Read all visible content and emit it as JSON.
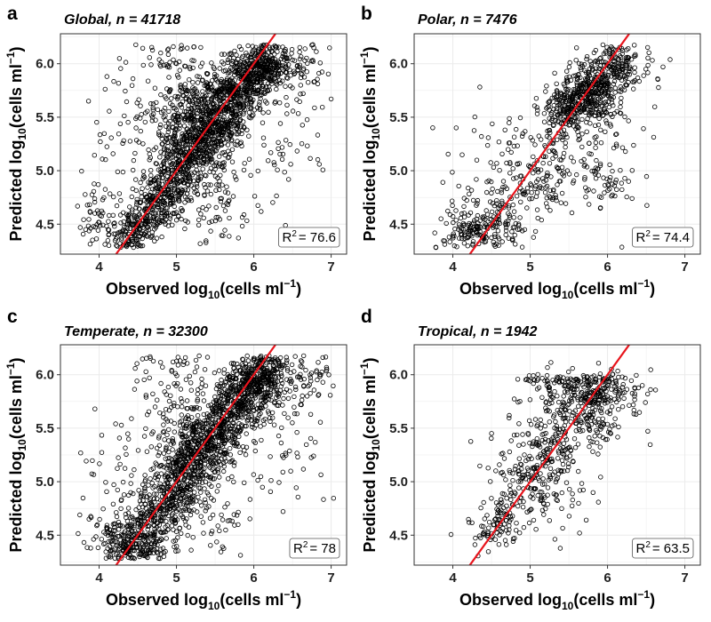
{
  "chart_data": [
    {
      "type": "scatter",
      "letter": "a",
      "title": "Global, n = 41718",
      "xlabel": "Observed log10(cells ml−1)",
      "ylabel": "Predicted log10(cells ml−1)",
      "xlim": [
        3.5,
        7.2
      ],
      "ylim": [
        4.22,
        6.28
      ],
      "xticks": [
        "4",
        "5",
        "6",
        "7"
      ],
      "yticks": [
        "4.5",
        "5.0",
        "5.5",
        "6.0"
      ],
      "grid": true,
      "fit_line": {
        "x": [
          4.0,
          6.5
        ],
        "y": [
          4.0,
          6.5
        ],
        "color": "#e8141c"
      },
      "r2_label": "R2",
      "r2_value": "= 76.6",
      "r2_placement": "bottom-right",
      "points": {
        "core": [
          [
            4.4,
            4.35,
            0.15,
            0.12,
            120
          ],
          [
            4.6,
            4.55,
            0.15,
            0.12,
            120
          ],
          [
            4.8,
            4.75,
            0.15,
            0.14,
            140
          ],
          [
            5.0,
            4.95,
            0.16,
            0.15,
            160
          ],
          [
            5.2,
            5.15,
            0.16,
            0.16,
            180
          ],
          [
            5.4,
            5.35,
            0.17,
            0.17,
            200
          ],
          [
            5.6,
            5.55,
            0.17,
            0.17,
            220
          ],
          [
            5.8,
            5.75,
            0.17,
            0.16,
            220
          ],
          [
            6.0,
            5.92,
            0.16,
            0.12,
            220
          ],
          [
            6.2,
            6.0,
            0.15,
            0.1,
            160
          ],
          [
            5.1,
            5.4,
            0.2,
            0.2,
            140
          ],
          [
            5.3,
            5.65,
            0.2,
            0.18,
            120
          ]
        ],
        "sparse": [
          [
            4.0,
            4.5,
            0.25,
            0.22,
            80
          ],
          [
            4.5,
            5.3,
            0.35,
            0.3,
            90
          ],
          [
            5.5,
            4.7,
            0.35,
            0.25,
            90
          ],
          [
            6.3,
            5.4,
            0.35,
            0.3,
            80
          ],
          [
            6.6,
            5.95,
            0.25,
            0.12,
            60
          ],
          [
            5.0,
            6.0,
            0.3,
            0.15,
            60
          ]
        ]
      }
    },
    {
      "type": "scatter",
      "letter": "b",
      "title": "Polar, n = 7476",
      "xlabel": "Observed log10(cells ml−1)",
      "ylabel": "Predicted log10(cells ml−1)",
      "xlim": [
        3.5,
        7.2
      ],
      "ylim": [
        4.22,
        6.28
      ],
      "xticks": [
        "4",
        "5",
        "6",
        "7"
      ],
      "yticks": [
        "4.5",
        "5.0",
        "5.5",
        "6.0"
      ],
      "grid": true,
      "fit_line": {
        "x": [
          4.0,
          6.5
        ],
        "y": [
          4.0,
          6.5
        ],
        "color": "#e8141c"
      },
      "r2_label": "R2",
      "r2_value": "= 74.4",
      "r2_placement": "bottom-right",
      "points": {
        "core": [
          [
            5.8,
            5.75,
            0.18,
            0.13,
            230
          ],
          [
            5.6,
            5.6,
            0.18,
            0.12,
            160
          ],
          [
            6.05,
            5.95,
            0.15,
            0.12,
            140
          ],
          [
            5.4,
            5.5,
            0.15,
            0.12,
            80
          ],
          [
            4.3,
            4.4,
            0.2,
            0.12,
            100
          ],
          [
            4.7,
            4.6,
            0.2,
            0.18,
            80
          ],
          [
            5.2,
            4.95,
            0.2,
            0.18,
            70
          ]
        ],
        "sparse": [
          [
            4.6,
            5.0,
            0.35,
            0.3,
            70
          ],
          [
            5.5,
            5.0,
            0.35,
            0.3,
            60
          ],
          [
            6.1,
            5.3,
            0.3,
            0.3,
            50
          ],
          [
            4.2,
            4.5,
            0.25,
            0.15,
            60
          ],
          [
            5.9,
            4.85,
            0.2,
            0.1,
            30
          ],
          [
            6.3,
            6.0,
            0.25,
            0.12,
            40
          ]
        ]
      }
    },
    {
      "type": "scatter",
      "letter": "c",
      "title": "Temperate, n = 32300",
      "xlabel": "Observed log10(cells ml−1)",
      "ylabel": "Predicted log10(cells ml−1)",
      "xlim": [
        3.5,
        7.2
      ],
      "ylim": [
        4.22,
        6.28
      ],
      "xticks": [
        "4",
        "5",
        "6",
        "7"
      ],
      "yticks": [
        "4.5",
        "5.0",
        "5.5",
        "6.0"
      ],
      "grid": true,
      "fit_line": {
        "x": [
          4.0,
          6.5
        ],
        "y": [
          4.0,
          6.5
        ],
        "color": "#e8141c"
      },
      "r2_label": "R2",
      "r2_value": "= 78",
      "r2_placement": "bottom-right",
      "points": {
        "core": [
          [
            4.4,
            4.4,
            0.15,
            0.12,
            110
          ],
          [
            4.6,
            4.55,
            0.16,
            0.13,
            120
          ],
          [
            4.8,
            4.75,
            0.16,
            0.14,
            130
          ],
          [
            5.0,
            4.95,
            0.16,
            0.15,
            150
          ],
          [
            5.2,
            5.15,
            0.17,
            0.16,
            170
          ],
          [
            5.4,
            5.35,
            0.17,
            0.17,
            190
          ],
          [
            5.6,
            5.55,
            0.17,
            0.17,
            200
          ],
          [
            5.8,
            5.75,
            0.17,
            0.15,
            200
          ],
          [
            6.0,
            5.92,
            0.16,
            0.12,
            200
          ],
          [
            6.2,
            6.0,
            0.15,
            0.1,
            150
          ],
          [
            5.1,
            5.4,
            0.2,
            0.2,
            120
          ],
          [
            4.5,
            4.35,
            0.25,
            0.1,
            100
          ]
        ],
        "sparse": [
          [
            4.1,
            4.6,
            0.25,
            0.22,
            70
          ],
          [
            4.6,
            5.3,
            0.35,
            0.3,
            80
          ],
          [
            5.5,
            4.7,
            0.35,
            0.25,
            70
          ],
          [
            6.3,
            5.4,
            0.35,
            0.3,
            70
          ],
          [
            6.6,
            5.95,
            0.25,
            0.12,
            60
          ],
          [
            5.0,
            6.0,
            0.3,
            0.15,
            50
          ]
        ]
      }
    },
    {
      "type": "scatter",
      "letter": "d",
      "title": "Tropical, n = 1942",
      "xlabel": "Observed log10(cells ml−1)",
      "ylabel": "Predicted log10(cells ml−1)",
      "xlim": [
        3.5,
        7.2
      ],
      "ylim": [
        4.22,
        6.28
      ],
      "xticks": [
        "4",
        "5",
        "6",
        "7"
      ],
      "yticks": [
        "4.5",
        "5.0",
        "5.5",
        "6.0"
      ],
      "grid": true,
      "fit_line": {
        "x": [
          4.0,
          6.5
        ],
        "y": [
          4.0,
          6.5
        ],
        "color": "#e8141c"
      },
      "r2_label": "R2",
      "r2_value": "= 63.5",
      "r2_placement": "bottom-right",
      "points": {
        "core": [
          [
            4.7,
            4.7,
            0.15,
            0.12,
            70
          ],
          [
            5.0,
            5.0,
            0.17,
            0.15,
            90
          ],
          [
            5.3,
            5.3,
            0.2,
            0.18,
            100
          ],
          [
            5.6,
            5.65,
            0.2,
            0.15,
            110
          ],
          [
            5.9,
            5.85,
            0.2,
            0.1,
            100
          ],
          [
            5.7,
            5.95,
            0.3,
            0.02,
            60
          ],
          [
            6.0,
            5.6,
            0.2,
            0.15,
            50
          ],
          [
            5.3,
            5.85,
            0.2,
            0.1,
            50
          ]
        ],
        "sparse": [
          [
            4.5,
            4.5,
            0.2,
            0.15,
            40
          ],
          [
            5.0,
            5.4,
            0.25,
            0.25,
            40
          ],
          [
            5.4,
            4.9,
            0.2,
            0.2,
            30
          ],
          [
            6.3,
            5.8,
            0.2,
            0.1,
            25
          ],
          [
            4.8,
            5.2,
            0.3,
            0.2,
            20
          ]
        ]
      }
    }
  ]
}
